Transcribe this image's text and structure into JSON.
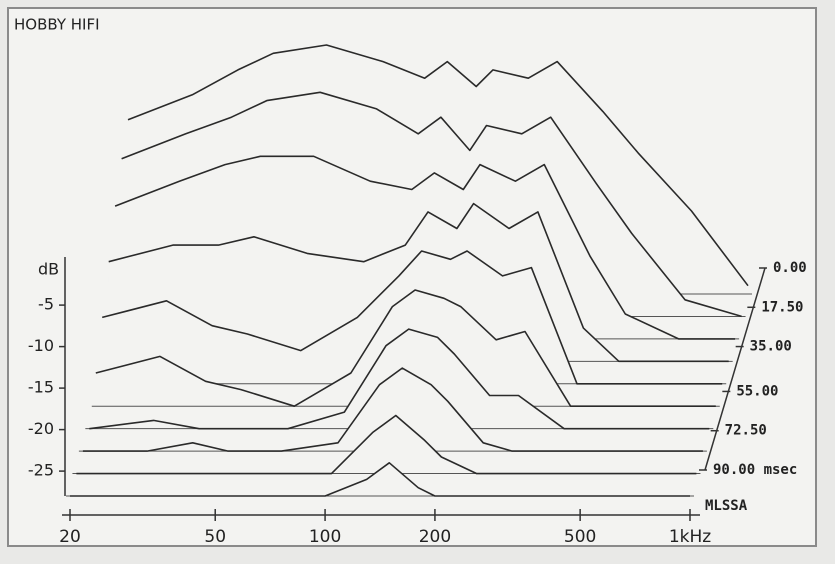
{
  "chart_data": {
    "type": "waterfall",
    "title": "HOBBY HIFI",
    "ylabel": "dB",
    "brand": "MLSSA",
    "color": "#2a2a2a",
    "frequencies": [
      20,
      30,
      40,
      50,
      70,
      100,
      130,
      150,
      180,
      200,
      250,
      300,
      400,
      500,
      700,
      1000
    ],
    "xlim": [
      20,
      1000
    ],
    "xticks": [
      20,
      50,
      100,
      200,
      500,
      {
        "value": 1000,
        "label": "1kHz"
      }
    ],
    "log_x": true,
    "ylim": [
      -28,
      2
    ],
    "yticks": [
      -5,
      -10,
      -15,
      -20,
      -25
    ],
    "zlim": [
      0,
      90
    ],
    "zticks": [
      {
        "value": 0,
        "label": "0.00"
      },
      {
        "value": 17.5,
        "label": "17.50"
      },
      {
        "value": 35,
        "label": "35.00"
      },
      {
        "value": 55,
        "label": "55.00"
      },
      {
        "value": 72.5,
        "label": "72.50"
      },
      {
        "value": 90,
        "label": "90.00 msec"
      }
    ],
    "slices": [
      {
        "time": 0,
        "values": [
          -7,
          -4,
          -1,
          1,
          2,
          0,
          -2,
          0,
          -3,
          -1,
          -2,
          0,
          -6,
          -11,
          -18,
          -27
        ]
      },
      {
        "time": 10,
        "values": [
          -9,
          -6,
          -4,
          -2,
          -1,
          -3,
          -6,
          -4,
          -8,
          -5,
          -6,
          -4,
          -12,
          -18,
          -26,
          -28
        ]
      },
      {
        "time": 20,
        "values": [
          -12,
          -9,
          -7,
          -6,
          -6,
          -9,
          -10,
          -8,
          -10,
          -7,
          -9,
          -7,
          -18,
          -25,
          -28,
          -28
        ]
      },
      {
        "time": 30,
        "values": [
          -16,
          -14,
          -14,
          -13,
          -15,
          -16,
          -14,
          -10,
          -12,
          -9,
          -12,
          -10,
          -24,
          -28,
          -28,
          -28
        ]
      },
      {
        "time": 40,
        "values": [
          -20,
          -18,
          -21,
          -22,
          -24,
          -20,
          -15,
          -12,
          -13,
          -12,
          -15,
          -14,
          -28,
          -28,
          -28,
          -28
        ]
      },
      {
        "time": 50,
        "values": [
          -24,
          -22,
          -25,
          -26,
          -28,
          -24,
          -16,
          -14,
          -15,
          -16,
          -20,
          -19,
          -28,
          -28,
          -28,
          -28
        ]
      },
      {
        "time": 60,
        "values": [
          -28,
          -27,
          -28,
          -28,
          -28,
          -26,
          -18,
          -16,
          -17,
          -19,
          -24,
          -24,
          -28,
          -28,
          -28,
          -28
        ]
      },
      {
        "time": 70,
        "values": [
          -28,
          -28,
          -27,
          -28,
          -28,
          -27,
          -20,
          -18,
          -20,
          -22,
          -27,
          -28,
          -28,
          -28,
          -28,
          -28
        ]
      },
      {
        "time": 80,
        "values": [
          -28,
          -28,
          -28,
          -28,
          -28,
          -28,
          -23,
          -21,
          -24,
          -26,
          -28,
          -28,
          -28,
          -28,
          -28,
          -28
        ]
      },
      {
        "time": 90,
        "values": [
          -28,
          -28,
          -28,
          -28,
          -28,
          -28,
          -26,
          -24,
          -27,
          -28,
          -28,
          -28,
          -28,
          -28,
          -28,
          -28
        ]
      }
    ]
  }
}
